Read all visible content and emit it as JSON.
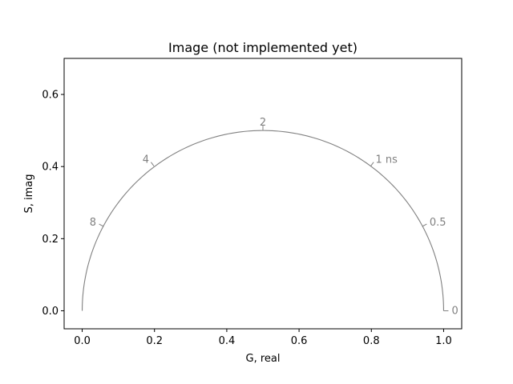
{
  "chart_data": {
    "type": "line",
    "title": "Image (not implemented yet)",
    "xlabel": "G, real",
    "ylabel": "S, imag",
    "xlim": [
      -0.05,
      1.05
    ],
    "ylim": [
      -0.05,
      0.7
    ],
    "x_ticks": [
      0.0,
      0.2,
      0.4,
      0.6,
      0.8,
      1.0
    ],
    "x_tick_labels": [
      "0.0",
      "0.2",
      "0.4",
      "0.6",
      "0.8",
      "1.0"
    ],
    "y_ticks": [
      0.0,
      0.2,
      0.4,
      0.6
    ],
    "y_tick_labels": [
      "0.0",
      "0.2",
      "0.4",
      "0.6"
    ],
    "grid": false,
    "series": [
      {
        "curve": "universal semicircle, center (0.5, 0), radius 0.5",
        "color": "#808080"
      }
    ],
    "annotations": [
      {
        "label": "0",
        "x": 1.0,
        "y": 0.0
      },
      {
        "label": "0.5",
        "x": 0.9415,
        "y": 0.2343
      },
      {
        "label": "1 ns",
        "x": 0.7984,
        "y": 0.4015
      },
      {
        "label": "2",
        "x": 0.5,
        "y": 0.5
      },
      {
        "label": "4",
        "x": 0.1984,
        "y": 0.4015
      },
      {
        "label": "8",
        "x": 0.0585,
        "y": 0.2343
      }
    ]
  }
}
